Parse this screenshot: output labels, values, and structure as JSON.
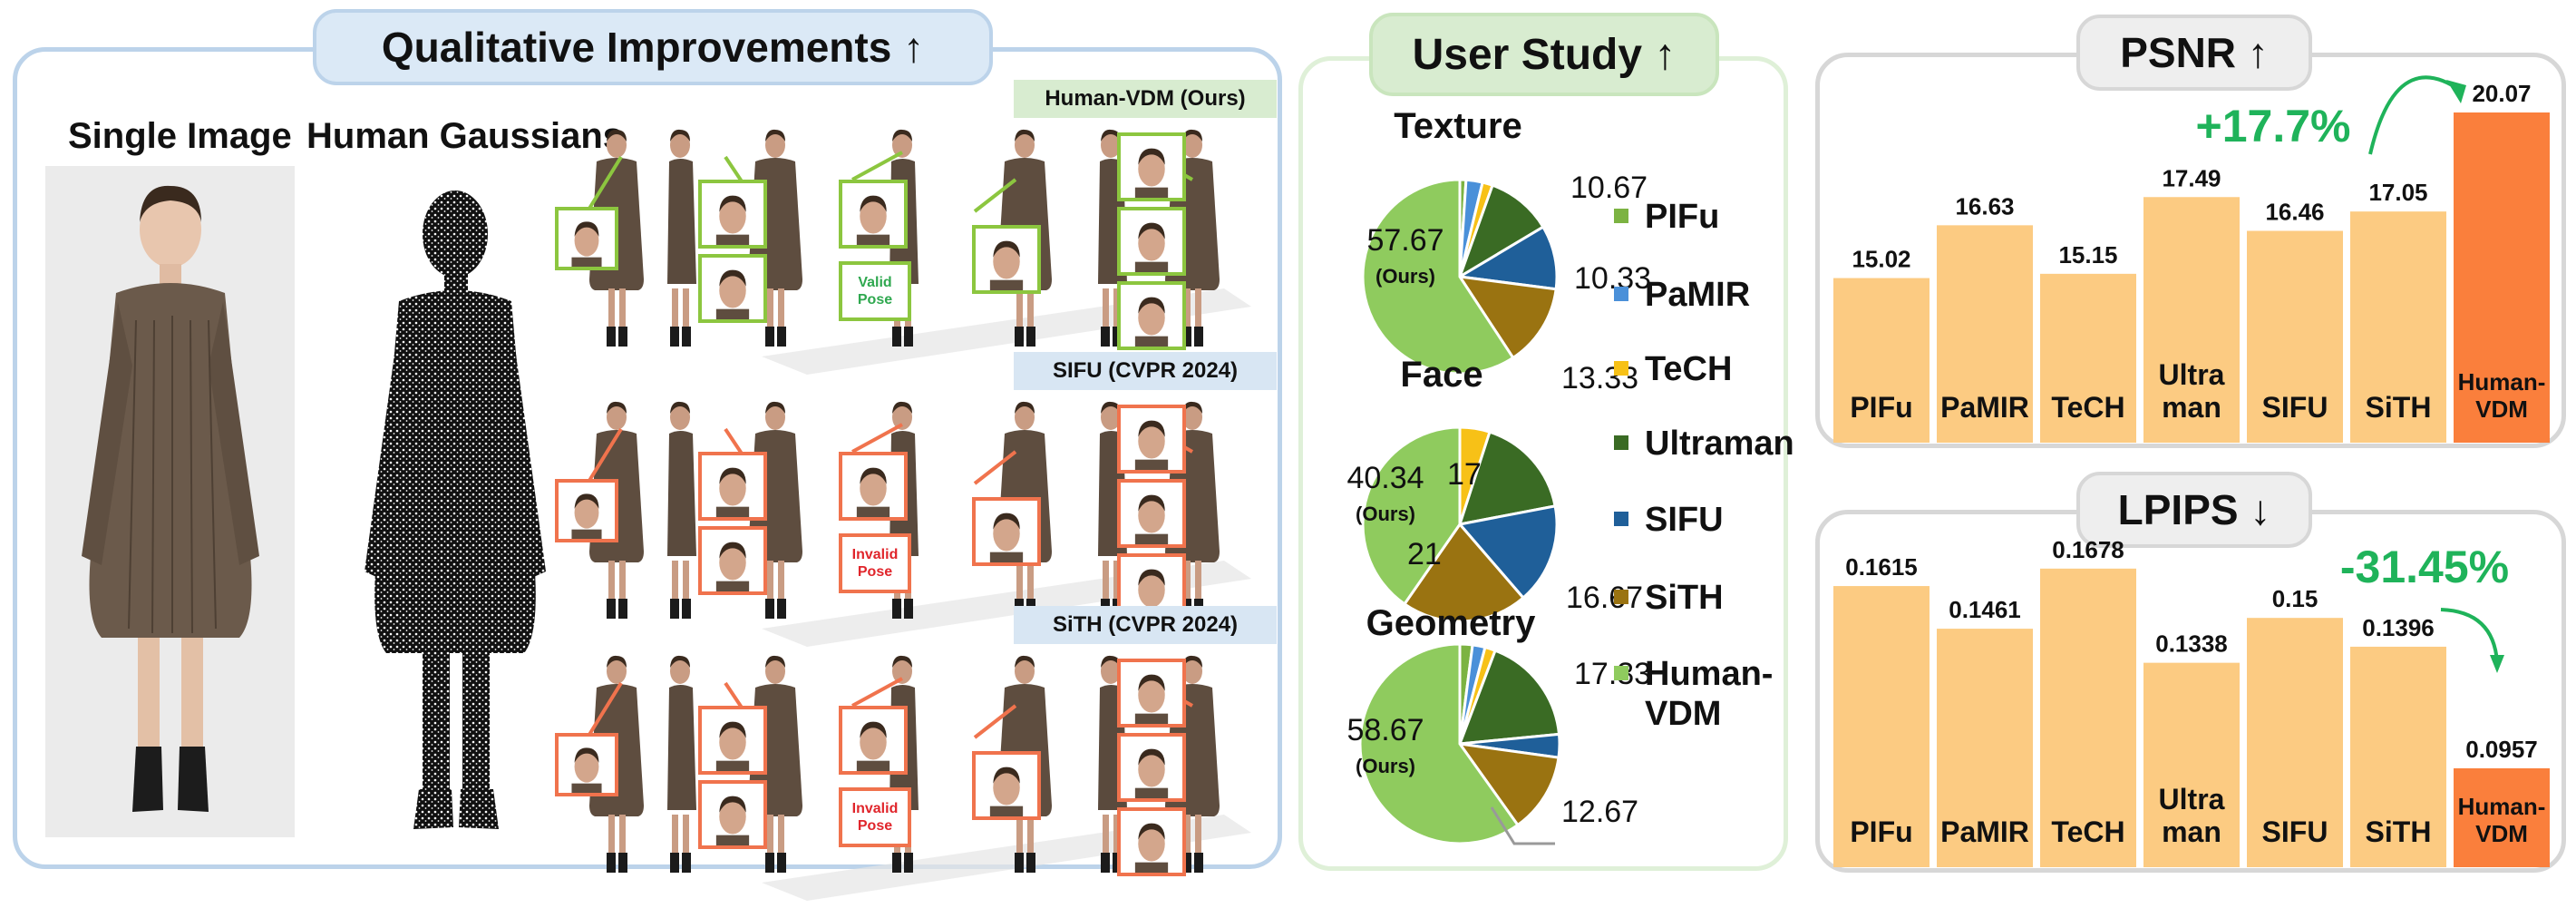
{
  "colors": {
    "panel_blue": "#bcd3ea",
    "panel_green": "#dff0d8",
    "panel_gray": "#d7d7d7",
    "ours_green": "#8cc63f",
    "fail_red": "#f0734d",
    "bar_light": "#fccb82",
    "bar_ours": "#fa7f3c",
    "gain_green": "#1fb35a"
  },
  "qualitative": {
    "title": "Qualitative Improvements ↑",
    "single_image_label": "Single Image",
    "gaussians_label": "Human Gaussians",
    "rows": [
      {
        "method": "Human-VDM (Ours)",
        "pose_label": "Valid Pose",
        "status": "ours"
      },
      {
        "method": "SIFU (CVPR 2024)",
        "pose_label": "Invalid Pose",
        "status": "fail"
      },
      {
        "method": "SiTH (CVPR 2024)",
        "pose_label": "Invalid Pose",
        "status": "fail"
      }
    ]
  },
  "user_study": {
    "title": "User Study ↑",
    "legend": [
      {
        "name": "PIFu",
        "color": "#7cb342"
      },
      {
        "name": "PaMIR",
        "color": "#4a90d9"
      },
      {
        "name": "TeCH",
        "color": "#f7c117"
      },
      {
        "name": "Ultraman",
        "color": "#3a6b24"
      },
      {
        "name": "SIFU",
        "color": "#1f5f99"
      },
      {
        "name": "SiTH",
        "color": "#9a7311"
      },
      {
        "name": "Human-VDM",
        "color": "#8fcb5e"
      }
    ]
  },
  "chart_data": [
    {
      "type": "pie",
      "title": "Texture",
      "series": [
        {
          "name": "PIFu",
          "value": 1.0
        },
        {
          "name": "PaMIR",
          "value": 2.67
        },
        {
          "name": "TeCH",
          "value": 1.66
        },
        {
          "name": "Ultraman",
          "value": 10.67
        },
        {
          "name": "SIFU",
          "value": 10.33
        },
        {
          "name": "SiTH",
          "value": 13.33
        },
        {
          "name": "Human-VDM",
          "value": 57.67
        }
      ],
      "labels": [
        {
          "text": "10.67",
          "series": "Ultraman"
        },
        {
          "text": "10.33",
          "series": "SIFU"
        },
        {
          "text": "13.33",
          "series": "SiTH"
        },
        {
          "text": "57.67",
          "sub": "(Ours)",
          "series": "Human-VDM"
        }
      ]
    },
    {
      "type": "pie",
      "title": "Face",
      "series": [
        {
          "name": "PIFu",
          "value": 0
        },
        {
          "name": "PaMIR",
          "value": 0
        },
        {
          "name": "TeCH",
          "value": 4.99
        },
        {
          "name": "Ultraman",
          "value": 17
        },
        {
          "name": "SIFU",
          "value": 16.67
        },
        {
          "name": "SiTH",
          "value": 21
        },
        {
          "name": "Human-VDM",
          "value": 40.34
        }
      ],
      "labels": [
        {
          "text": "17",
          "series": "Ultraman"
        },
        {
          "text": "16.67",
          "series": "SIFU"
        },
        {
          "text": "21",
          "series": "SiTH"
        },
        {
          "text": "40.34",
          "sub": "(Ours)",
          "series": "Human-VDM"
        }
      ]
    },
    {
      "type": "pie",
      "title": "Geometry",
      "series": [
        {
          "name": "PIFu",
          "value": 2.0
        },
        {
          "name": "PaMIR",
          "value": 2.0
        },
        {
          "name": "TeCH",
          "value": 1.66
        },
        {
          "name": "Ultraman",
          "value": 17.33
        },
        {
          "name": "SIFU",
          "value": 3.67
        },
        {
          "name": "SiTH",
          "value": 12.67
        },
        {
          "name": "Human-VDM",
          "value": 58.67
        }
      ],
      "labels": [
        {
          "text": "17.33",
          "series": "Ultraman"
        },
        {
          "text": "12.67",
          "series": "SiTH"
        },
        {
          "text": "58.67",
          "sub": "(Ours)",
          "series": "Human-VDM"
        }
      ]
    },
    {
      "type": "bar",
      "title": "PSNR ↑",
      "categories": [
        "PIFu",
        "PaMIR",
        "TeCH",
        "Ultra man",
        "SIFU",
        "SiTH",
        "Human- VDM"
      ],
      "values": [
        15.02,
        16.63,
        15.15,
        17.49,
        16.46,
        17.05,
        20.07
      ],
      "value_labels": [
        "15.02",
        "16.63",
        "15.15",
        "17.49",
        "16.46",
        "17.05",
        "20.07"
      ],
      "ylim": [
        10.0,
        20.9
      ],
      "highlight": "Human- VDM",
      "annotation": "+17.7%"
    },
    {
      "type": "bar",
      "title": "LPIPS ↓",
      "categories": [
        "PIFu",
        "PaMIR",
        "TeCH",
        "Ultra man",
        "SIFU",
        "SiTH",
        "Human- VDM"
      ],
      "values": [
        0.1615,
        0.1461,
        0.1678,
        0.1338,
        0.15,
        0.1396,
        0.0957
      ],
      "value_labels": [
        "0.1615",
        "0.1461",
        "0.1678",
        "0.1338",
        "0.15",
        "0.1396",
        "0.0957"
      ],
      "ylim": [
        0.06,
        0.172
      ],
      "highlight": "Human- VDM",
      "annotation": "-31.45%"
    }
  ]
}
